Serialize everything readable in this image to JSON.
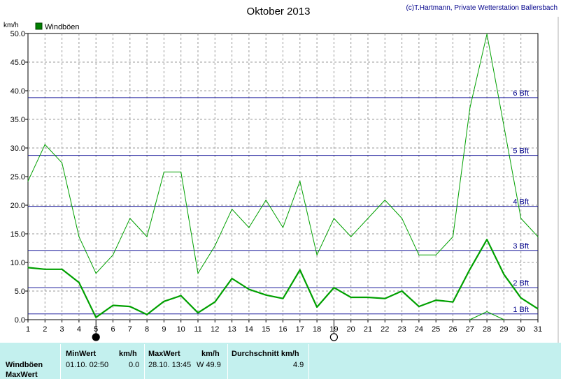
{
  "header": {
    "title": "Oktober 2013",
    "copyright": "(c)T.Hartmann, Private Wetterstation Ballersbach",
    "unit": "km/h"
  },
  "legend": {
    "label": "Windböen",
    "color": "#008000"
  },
  "chart_data": {
    "type": "line",
    "title": "Oktober 2013",
    "ylabel": "km/h",
    "xlim": [
      1,
      31
    ],
    "ylim": [
      0,
      50
    ],
    "grid": true,
    "legend_placement": "top-left",
    "x_ticks": [
      1,
      2,
      3,
      4,
      5,
      6,
      7,
      8,
      9,
      10,
      11,
      12,
      13,
      14,
      15,
      16,
      17,
      18,
      19,
      20,
      21,
      22,
      23,
      24,
      25,
      26,
      27,
      28,
      29,
      30,
      31
    ],
    "y_ticks": [
      "0.0",
      "5.0",
      "10.0",
      "15.0",
      "20.0",
      "25.0",
      "30.0",
      "35.0",
      "40.0",
      "45.0",
      "50.0"
    ],
    "beaufort_lines": [
      {
        "label": "1 Bft",
        "value": 1.0
      },
      {
        "label": "2 Bft",
        "value": 5.6
      },
      {
        "label": "3 Bft",
        "value": 12.1
      },
      {
        "label": "4 Bft",
        "value": 19.8
      },
      {
        "label": "5 Bft",
        "value": 28.7
      },
      {
        "label": "6 Bft",
        "value": 38.8
      }
    ],
    "series": [
      {
        "name": "Windböen",
        "role": "max",
        "color": "#00a000",
        "points": [
          [
            1,
            24.2
          ],
          [
            2,
            30.6
          ],
          [
            3,
            27.4
          ],
          [
            4,
            14.5
          ],
          [
            5,
            8.1
          ],
          [
            6,
            11.3
          ],
          [
            7,
            17.7
          ],
          [
            8,
            14.5
          ],
          [
            9,
            25.8
          ],
          [
            10,
            25.8
          ],
          [
            11,
            8.1
          ],
          [
            12,
            12.9
          ],
          [
            13,
            19.3
          ],
          [
            14,
            16.1
          ],
          [
            15,
            20.9
          ],
          [
            16,
            16.1
          ],
          [
            17,
            24.2
          ],
          [
            18,
            11.3
          ],
          [
            19,
            17.7
          ],
          [
            20,
            14.5
          ],
          [
            21,
            17.7
          ],
          [
            22,
            20.9
          ],
          [
            23,
            17.7
          ],
          [
            24,
            11.3
          ],
          [
            25,
            11.3
          ],
          [
            26,
            14.5
          ],
          [
            27,
            37.0
          ],
          [
            28,
            49.9
          ],
          [
            29,
            33.8
          ],
          [
            30,
            17.7
          ],
          [
            31,
            14.5
          ]
        ]
      },
      {
        "role": "mean",
        "color": "#00a000",
        "points": [
          [
            1,
            9.1
          ],
          [
            2,
            8.8
          ],
          [
            3,
            8.8
          ],
          [
            4,
            6.5
          ],
          [
            5,
            0.4
          ],
          [
            6,
            2.5
          ],
          [
            7,
            2.3
          ],
          [
            8,
            0.9
          ],
          [
            9,
            3.2
          ],
          [
            10,
            4.2
          ],
          [
            11,
            1.2
          ],
          [
            12,
            3.1
          ],
          [
            13,
            7.2
          ],
          [
            14,
            5.3
          ],
          [
            15,
            4.3
          ],
          [
            16,
            3.7
          ],
          [
            17,
            8.7
          ],
          [
            18,
            2.2
          ],
          [
            19,
            5.6
          ],
          [
            20,
            3.9
          ],
          [
            21,
            3.9
          ],
          [
            22,
            3.7
          ],
          [
            23,
            5.0
          ],
          [
            24,
            2.3
          ],
          [
            25,
            3.4
          ],
          [
            26,
            3.1
          ],
          [
            27,
            8.8
          ],
          [
            28,
            14.0
          ],
          [
            29,
            7.9
          ],
          [
            30,
            3.8
          ],
          [
            31,
            1.9
          ]
        ]
      },
      {
        "role": "min",
        "color": "#00a000",
        "points": [
          [
            27,
            0.0
          ],
          [
            28,
            1.4
          ],
          [
            29,
            0.0
          ]
        ]
      }
    ],
    "moon_phases": [
      {
        "day": 5,
        "phase": "new"
      },
      {
        "day": 19,
        "phase": "full"
      }
    ]
  },
  "stats": {
    "row_label_1": "Windböen",
    "row_label_2": "MaxWert",
    "min_header": "MinWert",
    "min_unit": "km/h",
    "max_header": "MaxWert",
    "max_unit": "km/h",
    "avg_header": "Durchschnitt km/h",
    "min_time": "01.10.  02:50",
    "min_value": "0.0",
    "max_time": "28.10.  13:45",
    "max_value": "W 49.9",
    "avg_value": "4.9"
  }
}
